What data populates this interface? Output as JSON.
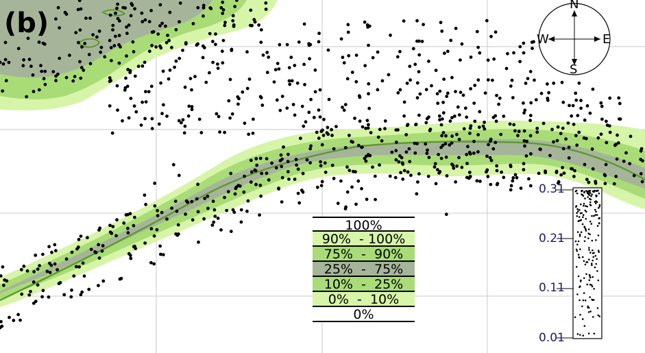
{
  "panel_label": "(b)",
  "compass": {
    "north": "N",
    "south": "S",
    "west": "W",
    "east": "E"
  },
  "legend": {
    "rows": [
      {
        "label": "100%",
        "color": "#ffffff"
      },
      {
        "label": "90%  - 100%",
        "color": "#d6f5a8"
      },
      {
        "label": "75%  -  90%",
        "color": "#a9dc76"
      },
      {
        "label": "25%  -  75%",
        "color": "#a6b59a"
      },
      {
        "label": "10%  -  25%",
        "color": "#a9dc76"
      },
      {
        "label": "0%  -  10%",
        "color": "#d6f5a8"
      },
      {
        "label": "0%",
        "color": "#ffffff"
      }
    ]
  },
  "density_scale": {
    "labels": [
      "0.31",
      "0.21",
      "0.11",
      "0.01"
    ]
  },
  "colors": {
    "band_outer": "#d6f5a8",
    "band_mid": "#a9dc76",
    "band_core": "#a6b59a",
    "median_line": "#5e9a2e",
    "dot": "#000000",
    "grid": "#c8c8c8",
    "scale_text": "#1a1a6e"
  }
}
